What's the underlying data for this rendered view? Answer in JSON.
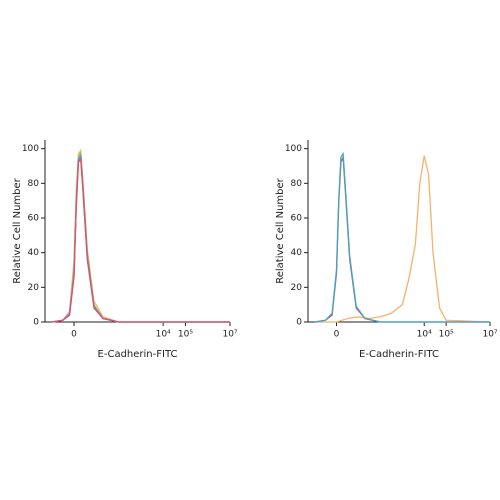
{
  "chart_data": [
    {
      "type": "line",
      "xlabel": "E-Cadherin-FITC",
      "ylabel": "Relative Cell Number",
      "xlim": [
        -1.3,
        7
      ],
      "ylim": [
        0,
        105
      ],
      "xticks": [
        0,
        {
          "value": 4,
          "label": "10⁴"
        },
        {
          "value": 5,
          "label": "10⁵"
        },
        {
          "value": 7,
          "label": "10⁷"
        }
      ],
      "yticks": [
        0,
        20,
        40,
        60,
        80,
        100
      ],
      "series": [
        {
          "color": "#f5b26b",
          "x": [
            -1,
            -0.5,
            -0.2,
            0,
            0.1,
            0.2,
            0.3,
            0.4,
            0.6,
            0.9,
            1.3,
            2,
            7
          ],
          "values": [
            0,
            1,
            6,
            35,
            75,
            97,
            99,
            82,
            42,
            12,
            3,
            0,
            0
          ]
        },
        {
          "color": "#8fc76a",
          "x": [
            -1,
            -0.5,
            -0.2,
            0,
            0.1,
            0.2,
            0.3,
            0.4,
            0.6,
            0.9,
            1.3,
            2,
            7
          ],
          "values": [
            0,
            1,
            5,
            30,
            70,
            95,
            98,
            80,
            40,
            10,
            2,
            0,
            0
          ]
        },
        {
          "color": "#9a7fc8",
          "x": [
            -1,
            -0.5,
            -0.2,
            0,
            0.1,
            0.2,
            0.3,
            0.4,
            0.6,
            0.9,
            1.3,
            2,
            7
          ],
          "values": [
            0,
            1,
            5,
            28,
            68,
            94,
            96,
            78,
            38,
            9,
            2,
            0,
            0
          ]
        },
        {
          "color": "#3aa6c9",
          "x": [
            -1,
            -0.5,
            -0.2,
            0,
            0.1,
            0.2,
            0.3,
            0.4,
            0.6,
            0.9,
            1.3,
            2,
            7
          ],
          "values": [
            0,
            1,
            4,
            27,
            66,
            93,
            95,
            77,
            37,
            9,
            2,
            0,
            0
          ]
        },
        {
          "color": "#e0506a",
          "x": [
            -1,
            -0.5,
            -0.2,
            0,
            0.1,
            0.2,
            0.3,
            0.4,
            0.6,
            0.9,
            1.3,
            2,
            7
          ],
          "values": [
            0,
            1,
            4,
            26,
            65,
            92,
            94,
            76,
            36,
            8,
            2,
            0,
            0
          ]
        }
      ]
    },
    {
      "type": "line",
      "xlabel": "E-Cadherin-FITC",
      "ylabel": "Relative Cell Number",
      "xlim": [
        -1.3,
        7
      ],
      "ylim": [
        0,
        105
      ],
      "xticks": [
        0,
        {
          "value": 4,
          "label": "10⁴"
        },
        {
          "value": 5,
          "label": "10⁵"
        },
        {
          "value": 7,
          "label": "10⁷"
        }
      ],
      "yticks": [
        0,
        20,
        40,
        60,
        80,
        100
      ],
      "series": [
        {
          "color": "#f5b26b",
          "x": [
            -1,
            0,
            0.5,
            1,
            1.5,
            2,
            2.5,
            3,
            3.3,
            3.6,
            3.8,
            4,
            4.2,
            4.4,
            4.7,
            5,
            7
          ],
          "values": [
            0,
            0,
            2,
            3,
            2,
            3,
            5,
            10,
            25,
            45,
            80,
            96,
            85,
            40,
            8,
            1,
            0
          ]
        },
        {
          "color": "#e0506a",
          "x": [
            -1,
            -0.5,
            -0.2,
            0,
            0.1,
            0.2,
            0.3,
            0.4,
            0.6,
            0.9,
            1.3,
            2,
            7
          ],
          "values": [
            0,
            1,
            4,
            28,
            68,
            92,
            95,
            76,
            36,
            8,
            2,
            0,
            0
          ]
        },
        {
          "color": "#3aa6c9",
          "x": [
            -1,
            -0.5,
            -0.2,
            0,
            0.1,
            0.2,
            0.3,
            0.4,
            0.6,
            0.9,
            1.3,
            2,
            7
          ],
          "values": [
            0,
            1,
            5,
            30,
            70,
            95,
            97,
            78,
            38,
            9,
            2,
            0,
            0
          ]
        }
      ]
    }
  ]
}
